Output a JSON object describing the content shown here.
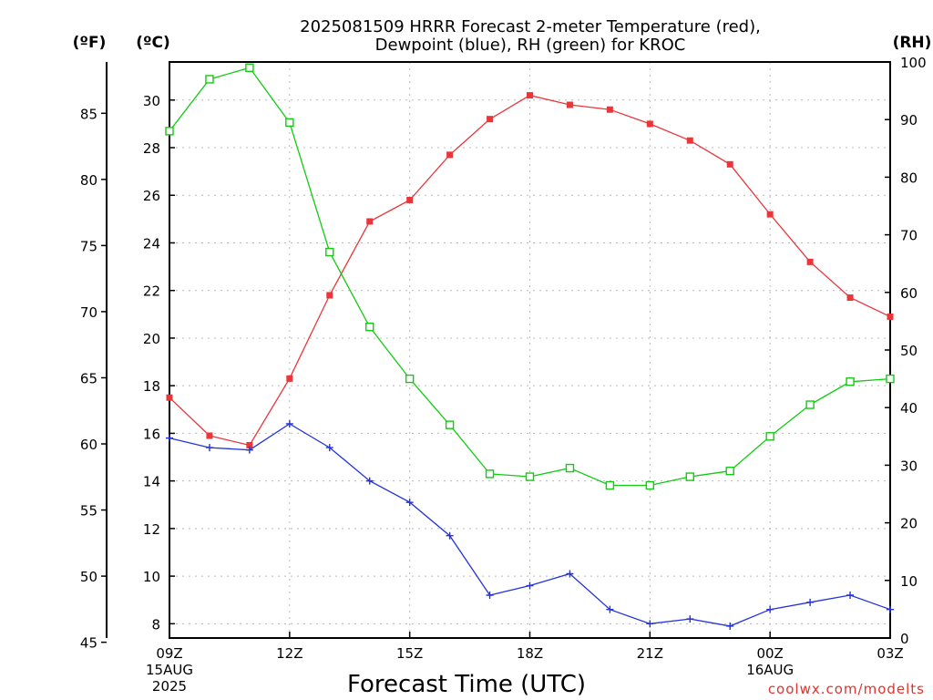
{
  "chart_data": {
    "type": "line",
    "title": [
      "2025081509 HRRR Forecast 2-meter Temperature (red),",
      "Dewpoint (blue), RH (green) for KROC"
    ],
    "xlabel": "Forecast Time (UTC)",
    "units": {
      "fahrenheit": "(ºF)",
      "celsius": "(ºC)",
      "rh": "(RH)"
    },
    "x_hours": [
      9,
      10,
      11,
      12,
      13,
      14,
      15,
      16,
      17,
      18,
      19,
      20,
      21,
      22,
      23,
      24,
      25,
      26,
      27
    ],
    "x_ticks": [
      {
        "hour": 9,
        "lines": [
          "09Z",
          "15AUG",
          "2025"
        ]
      },
      {
        "hour": 12,
        "lines": [
          "12Z"
        ]
      },
      {
        "hour": 15,
        "lines": [
          "15Z"
        ]
      },
      {
        "hour": 18,
        "lines": [
          "18Z"
        ]
      },
      {
        "hour": 21,
        "lines": [
          "21Z"
        ]
      },
      {
        "hour": 24,
        "lines": [
          "00Z",
          "16AUG"
        ]
      },
      {
        "hour": 27,
        "lines": [
          "03Z"
        ]
      }
    ],
    "xlim": [
      9,
      27
    ],
    "celsius_axis": {
      "ylim": [
        7.4,
        31.6
      ],
      "ticks": [
        8,
        10,
        12,
        14,
        16,
        18,
        20,
        22,
        24,
        26,
        28,
        30
      ]
    },
    "fahrenheit_axis": {
      "ylim": [
        45.32,
        88.88
      ],
      "ticks": [
        45,
        50,
        55,
        60,
        65,
        70,
        75,
        80,
        85
      ]
    },
    "rh_axis": {
      "ylim": [
        0,
        100
      ],
      "ticks": [
        0,
        10,
        20,
        30,
        40,
        50,
        60,
        70,
        80,
        90,
        100
      ]
    },
    "series": [
      {
        "key": "temperature",
        "axis": "celsius",
        "color": "#e8363b",
        "marker": "filled-square",
        "values": [
          17.5,
          15.9,
          15.5,
          18.3,
          21.8,
          24.9,
          25.8,
          27.7,
          29.2,
          30.2,
          29.8,
          29.6,
          29.0,
          28.3,
          27.3,
          25.2,
          23.2,
          21.7,
          20.9
        ]
      },
      {
        "key": "dewpoint",
        "axis": "celsius",
        "color": "#2233dd",
        "marker": "plus",
        "values": [
          15.8,
          15.4,
          15.3,
          16.4,
          15.4,
          14.0,
          13.1,
          11.7,
          9.2,
          9.6,
          10.1,
          8.6,
          8.0,
          8.2,
          7.9,
          8.6,
          8.9,
          9.2,
          8.6
        ]
      },
      {
        "key": "rh",
        "axis": "rh",
        "color": "#11cc11",
        "marker": "open-square",
        "values": [
          88,
          97,
          99,
          89.5,
          67,
          54,
          45,
          37,
          28.5,
          28,
          29.5,
          26.5,
          26.5,
          28,
          29,
          35,
          40.5,
          44.5,
          45
        ]
      }
    ]
  },
  "credit": "coolwx.com/modelts"
}
